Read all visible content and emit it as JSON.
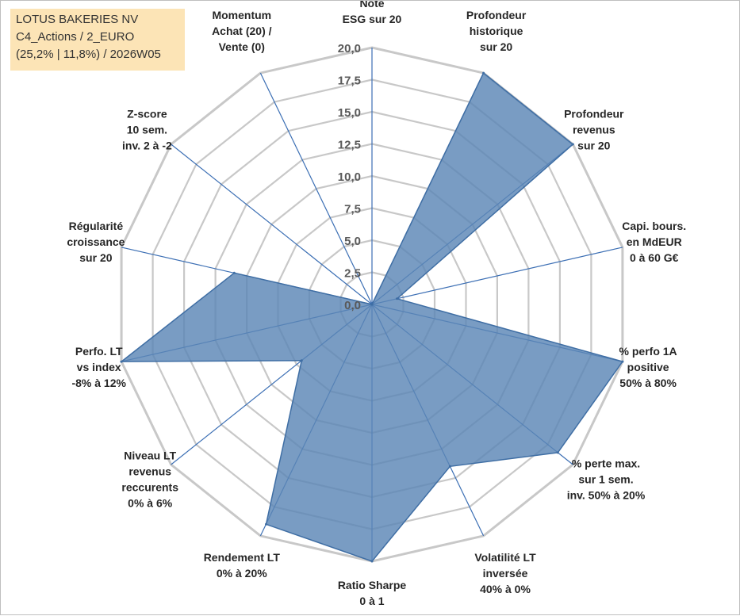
{
  "header": {
    "line1": "LOTUS BAKERIES NV",
    "line2": "C4_Actions / 2_EURO",
    "line3": "(25,2% | 11,8%) / 2026W05"
  },
  "colors": {
    "series_fill": "#5b86b6",
    "series_stroke": "#3f6ea4",
    "grid": "#c8c8c8",
    "spokes": "#3c6fb4",
    "header_bg": "#fce4b6"
  },
  "chart_data": {
    "type": "radar",
    "title": "",
    "rmin": 0,
    "rmax": 20,
    "ticks": [
      "0,0",
      "2,5",
      "5,0",
      "7,5",
      "10,0",
      "12,5",
      "15,0",
      "17,5",
      "20,0"
    ],
    "axes": [
      [
        "Note",
        "ESG sur 20"
      ],
      [
        "Profondeur",
        "historique",
        "sur 20"
      ],
      [
        "Profondeur",
        "revenus",
        "sur 20"
      ],
      [
        "Capi. bours.",
        "en MdEUR",
        "0 à 60 G€"
      ],
      [
        "% perfo 1A",
        "positive",
        "50% à 80%"
      ],
      [
        "% perte max.",
        "sur 1 sem.",
        "inv. 50% à 20%"
      ],
      [
        "Volatilité LT",
        "inversée",
        "40% à 0%"
      ],
      [
        "Ratio Sharpe",
        "0 à 1"
      ],
      [
        "Rendement LT",
        "0% à 20%"
      ],
      [
        "Niveau LT",
        "revenus",
        "reccurents",
        "0% à 6%"
      ],
      [
        "Perfo. LT",
        "vs index",
        "-8% à 12%"
      ],
      [
        "Régularité",
        "croissance",
        "sur 20"
      ],
      [
        "Z-score",
        "10 sem.",
        "inv. 2 à -2"
      ],
      [
        "Momentum",
        "Achat (20) /",
        "Vente (0)"
      ]
    ],
    "series": [
      {
        "values": [
          0,
          20,
          20,
          2,
          20,
          18.5,
          14,
          20,
          19,
          7,
          20,
          11,
          0,
          0
        ]
      }
    ],
    "grid": true,
    "legend": "none"
  }
}
